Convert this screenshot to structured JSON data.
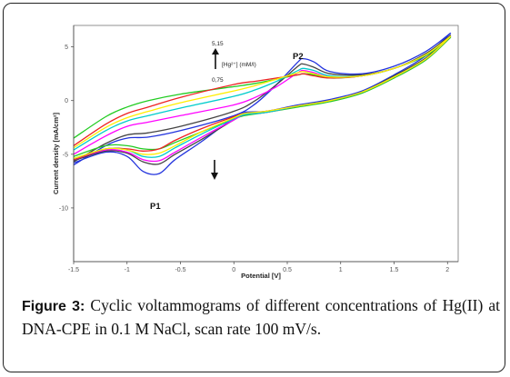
{
  "caption": {
    "label": "Figure 3:",
    "text": "Cyclic voltammograms of different concentrations of Hg(II) at DNA-CPE in 0.1 M NaCl, scan rate 100 mV/s."
  },
  "chart_data": {
    "type": "line",
    "xlabel": "Potential [V]",
    "ylabel": "Current density [mA/cm²]",
    "xlim": [
      -1.5,
      2.1
    ],
    "ylim": [
      -15,
      7
    ],
    "x_ticks": [
      "-1.5",
      "-1",
      "-0.5",
      "0",
      "0.5",
      "1",
      "1.5",
      "2"
    ],
    "y_ticks": [
      "5",
      "0",
      "-5",
      "-10"
    ],
    "annotations": {
      "concentration_top": "5,15",
      "concentration_bottom": "0,75",
      "concentration_label": "[Hg²⁺] (mM/l)",
      "peak_p1": "P1",
      "peak_p2": "P2"
    },
    "series": [
      {
        "color": "#2233dd",
        "forward": [
          [
            -1.5,
            -6.0
          ],
          [
            -1.2,
            -4.2
          ],
          [
            -1.0,
            -3.5
          ],
          [
            -0.8,
            -3.4
          ],
          [
            -0.5,
            -2.8
          ],
          [
            0.0,
            -1.4
          ],
          [
            0.2,
            -0.3
          ],
          [
            0.4,
            1.5
          ],
          [
            0.6,
            3.6
          ],
          [
            0.65,
            3.9
          ],
          [
            0.75,
            3.6
          ],
          [
            0.9,
            2.7
          ],
          [
            1.2,
            2.5
          ],
          [
            1.5,
            3.2
          ],
          [
            1.8,
            4.6
          ],
          [
            2.03,
            6.3
          ]
        ],
        "reverse": [
          [
            2.03,
            6.3
          ],
          [
            1.8,
            4.2
          ],
          [
            1.5,
            2.4
          ],
          [
            1.2,
            0.9
          ],
          [
            0.9,
            0.1
          ],
          [
            0.6,
            -0.4
          ],
          [
            0.3,
            -1.0
          ],
          [
            0.1,
            -1.1
          ],
          [
            0.0,
            -1.6
          ],
          [
            -0.3,
            -3.8
          ],
          [
            -0.55,
            -5.5
          ],
          [
            -0.7,
            -6.8
          ],
          [
            -0.85,
            -6.6
          ],
          [
            -1.0,
            -5.2
          ],
          [
            -1.2,
            -4.8
          ],
          [
            -1.5,
            -5.8
          ]
        ]
      },
      {
        "color": "#444444",
        "forward": [
          [
            -1.5,
            -5.7
          ],
          [
            -1.2,
            -4.0
          ],
          [
            -1.0,
            -3.2
          ],
          [
            -0.8,
            -3.0
          ],
          [
            -0.5,
            -2.4
          ],
          [
            0.0,
            -1.0
          ],
          [
            0.2,
            0.0
          ],
          [
            0.4,
            1.5
          ],
          [
            0.6,
            3.2
          ],
          [
            0.65,
            3.4
          ],
          [
            0.75,
            3.1
          ],
          [
            0.9,
            2.5
          ],
          [
            1.2,
            2.4
          ],
          [
            1.5,
            3.0
          ],
          [
            1.8,
            4.4
          ],
          [
            2.03,
            6.1
          ]
        ],
        "reverse": [
          [
            2.03,
            6.1
          ],
          [
            1.8,
            4.0
          ],
          [
            1.5,
            2.3
          ],
          [
            1.2,
            0.8
          ],
          [
            0.9,
            0.0
          ],
          [
            0.6,
            -0.5
          ],
          [
            0.3,
            -1.1
          ],
          [
            0.1,
            -1.3
          ],
          [
            0.0,
            -1.8
          ],
          [
            -0.3,
            -3.6
          ],
          [
            -0.55,
            -5.0
          ],
          [
            -0.7,
            -5.9
          ],
          [
            -0.85,
            -5.7
          ],
          [
            -1.0,
            -4.9
          ],
          [
            -1.2,
            -4.7
          ],
          [
            -1.5,
            -5.6
          ]
        ]
      },
      {
        "color": "#22cc22",
        "forward": [
          [
            -1.5,
            -3.5
          ],
          [
            -1.2,
            -1.5
          ],
          [
            -1.0,
            -0.6
          ],
          [
            -0.8,
            0.0
          ],
          [
            -0.5,
            0.6
          ],
          [
            0.0,
            1.3
          ],
          [
            0.2,
            1.6
          ],
          [
            0.4,
            2.0
          ],
          [
            0.6,
            2.4
          ],
          [
            0.65,
            2.5
          ],
          [
            0.75,
            2.4
          ],
          [
            0.9,
            2.1
          ],
          [
            1.2,
            2.3
          ],
          [
            1.5,
            3.0
          ],
          [
            1.8,
            4.2
          ],
          [
            2.03,
            5.9
          ]
        ],
        "reverse": [
          [
            2.03,
            5.9
          ],
          [
            1.8,
            3.8
          ],
          [
            1.5,
            2.1
          ],
          [
            1.2,
            0.7
          ],
          [
            0.9,
            -0.1
          ],
          [
            0.6,
            -0.6
          ],
          [
            0.3,
            -1.1
          ],
          [
            0.1,
            -1.4
          ],
          [
            0.0,
            -1.7
          ],
          [
            -0.3,
            -2.9
          ],
          [
            -0.55,
            -3.9
          ],
          [
            -0.7,
            -4.5
          ],
          [
            -0.85,
            -4.5
          ],
          [
            -1.0,
            -4.2
          ],
          [
            -1.2,
            -4.2
          ],
          [
            -1.5,
            -5.2
          ]
        ]
      },
      {
        "color": "#ff00ff",
        "forward": [
          [
            -1.5,
            -5.0
          ],
          [
            -1.2,
            -3.3
          ],
          [
            -1.0,
            -2.4
          ],
          [
            -0.8,
            -2.0
          ],
          [
            -0.5,
            -1.4
          ],
          [
            0.0,
            -0.4
          ],
          [
            0.2,
            0.3
          ],
          [
            0.4,
            1.3
          ],
          [
            0.6,
            2.6
          ],
          [
            0.65,
            2.8
          ],
          [
            0.75,
            2.6
          ],
          [
            0.9,
            2.2
          ],
          [
            1.2,
            2.3
          ],
          [
            1.5,
            3.0
          ],
          [
            1.8,
            4.3
          ],
          [
            2.03,
            6.0
          ]
        ],
        "reverse": [
          [
            2.03,
            6.0
          ],
          [
            1.8,
            3.9
          ],
          [
            1.5,
            2.2
          ],
          [
            1.2,
            0.8
          ],
          [
            0.9,
            0.0
          ],
          [
            0.6,
            -0.5
          ],
          [
            0.3,
            -1.1
          ],
          [
            0.1,
            -1.3
          ],
          [
            0.0,
            -1.8
          ],
          [
            -0.3,
            -3.4
          ],
          [
            -0.55,
            -4.8
          ],
          [
            -0.7,
            -5.6
          ],
          [
            -0.85,
            -5.5
          ],
          [
            -1.0,
            -4.8
          ],
          [
            -1.2,
            -4.6
          ],
          [
            -1.5,
            -5.5
          ]
        ]
      },
      {
        "color": "#ee2222",
        "forward": [
          [
            -1.5,
            -4.2
          ],
          [
            -1.2,
            -2.2
          ],
          [
            -1.0,
            -1.2
          ],
          [
            -0.8,
            -0.6
          ],
          [
            -0.5,
            0.3
          ],
          [
            0.0,
            1.5
          ],
          [
            0.2,
            1.8
          ],
          [
            0.4,
            2.1
          ],
          [
            0.6,
            2.4
          ],
          [
            0.65,
            2.5
          ],
          [
            0.75,
            2.3
          ],
          [
            0.9,
            2.1
          ],
          [
            1.2,
            2.3
          ],
          [
            1.5,
            3.0
          ],
          [
            1.8,
            4.3
          ],
          [
            2.03,
            6.0
          ]
        ],
        "reverse": [
          [
            2.03,
            6.0
          ],
          [
            1.8,
            3.9
          ],
          [
            1.5,
            2.2
          ],
          [
            1.2,
            0.8
          ],
          [
            0.9,
            0.0
          ],
          [
            0.6,
            -0.5
          ],
          [
            0.3,
            -1.0
          ],
          [
            0.1,
            -1.2
          ],
          [
            0.0,
            -1.5
          ],
          [
            -0.3,
            -2.6
          ],
          [
            -0.55,
            -3.7
          ],
          [
            -0.7,
            -4.5
          ],
          [
            -0.85,
            -4.7
          ],
          [
            -1.0,
            -4.5
          ],
          [
            -1.2,
            -4.5
          ],
          [
            -1.5,
            -5.5
          ]
        ]
      },
      {
        "color": "#00cccc",
        "forward": [
          [
            -1.5,
            -4.6
          ],
          [
            -1.2,
            -2.8
          ],
          [
            -1.0,
            -1.9
          ],
          [
            -0.8,
            -1.4
          ],
          [
            -0.5,
            -0.7
          ],
          [
            0.0,
            0.4
          ],
          [
            0.2,
            1.0
          ],
          [
            0.4,
            1.8
          ],
          [
            0.6,
            2.8
          ],
          [
            0.65,
            3.0
          ],
          [
            0.75,
            2.8
          ],
          [
            0.9,
            2.3
          ],
          [
            1.2,
            2.3
          ],
          [
            1.5,
            3.0
          ],
          [
            1.8,
            4.3
          ],
          [
            2.03,
            6.0
          ]
        ],
        "reverse": [
          [
            2.03,
            6.0
          ],
          [
            1.8,
            3.9
          ],
          [
            1.5,
            2.2
          ],
          [
            1.2,
            0.8
          ],
          [
            0.9,
            0.0
          ],
          [
            0.6,
            -0.5
          ],
          [
            0.3,
            -1.1
          ],
          [
            0.1,
            -1.3
          ],
          [
            0.0,
            -1.7
          ],
          [
            -0.3,
            -3.1
          ],
          [
            -0.55,
            -4.4
          ],
          [
            -0.7,
            -5.2
          ],
          [
            -0.85,
            -5.2
          ],
          [
            -1.0,
            -4.6
          ],
          [
            -1.2,
            -4.5
          ],
          [
            -1.5,
            -5.4
          ]
        ]
      },
      {
        "color": "#ffee00",
        "forward": [
          [
            -1.5,
            -4.4
          ],
          [
            -1.2,
            -2.5
          ],
          [
            -1.0,
            -1.6
          ],
          [
            -0.8,
            -1.0
          ],
          [
            -0.5,
            -0.2
          ],
          [
            0.0,
            0.9
          ],
          [
            0.2,
            1.4
          ],
          [
            0.4,
            2.0
          ],
          [
            0.6,
            2.6
          ],
          [
            0.65,
            2.7
          ],
          [
            0.75,
            2.5
          ],
          [
            0.9,
            2.2
          ],
          [
            1.2,
            2.3
          ],
          [
            1.5,
            3.0
          ],
          [
            1.8,
            4.3
          ],
          [
            2.03,
            6.0
          ]
        ],
        "reverse": [
          [
            2.03,
            6.0
          ],
          [
            1.8,
            3.9
          ],
          [
            1.5,
            2.2
          ],
          [
            1.2,
            0.8
          ],
          [
            0.9,
            0.0
          ],
          [
            0.6,
            -0.5
          ],
          [
            0.3,
            -1.0
          ],
          [
            0.1,
            -1.2
          ],
          [
            0.0,
            -1.6
          ],
          [
            -0.3,
            -2.9
          ],
          [
            -0.55,
            -4.2
          ],
          [
            -0.7,
            -4.9
          ],
          [
            -0.85,
            -5.0
          ],
          [
            -1.0,
            -4.6
          ],
          [
            -1.2,
            -4.5
          ],
          [
            -1.5,
            -5.4
          ]
        ]
      }
    ]
  }
}
